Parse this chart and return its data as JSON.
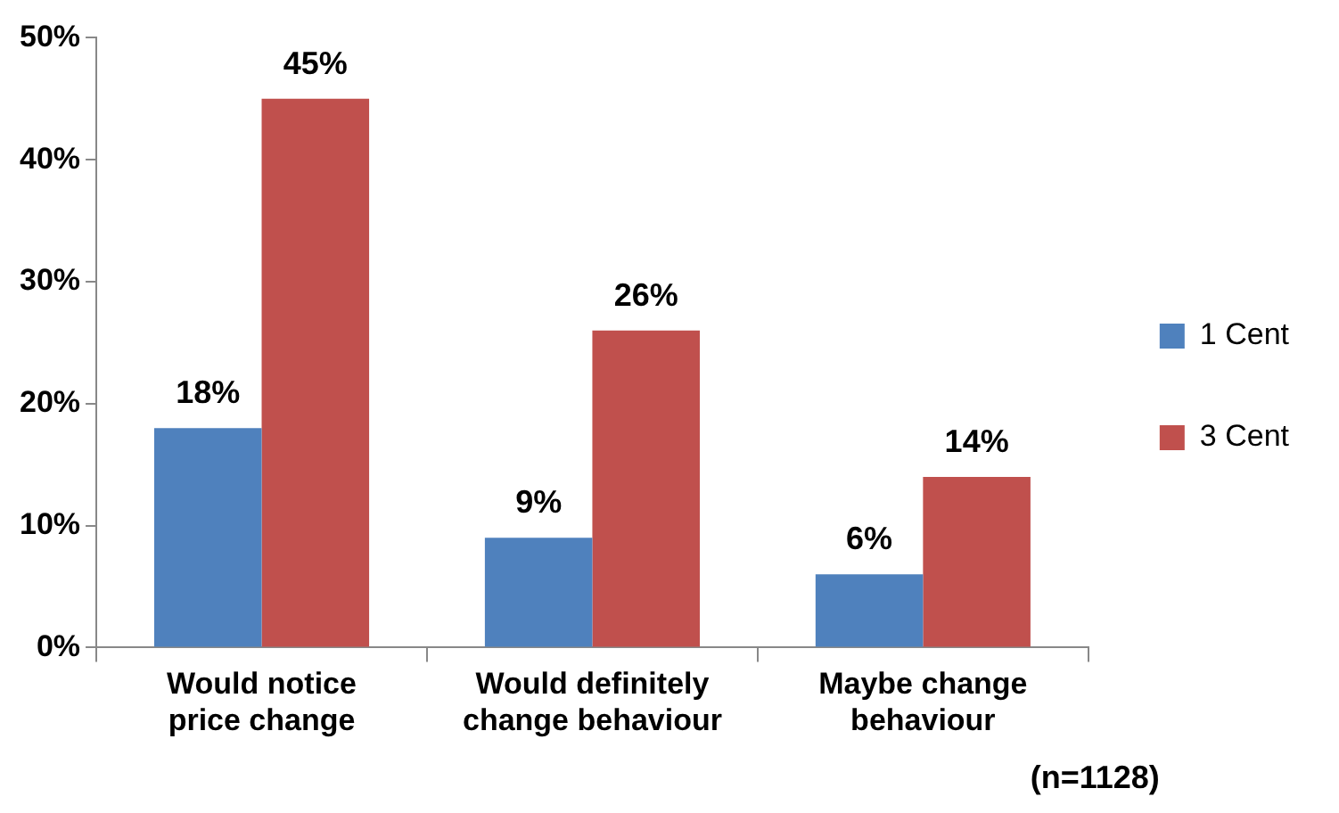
{
  "chart_data": {
    "type": "bar",
    "categories": [
      "Would notice price change",
      "Would definitely change behaviour",
      "Maybe change behaviour"
    ],
    "series": [
      {
        "name": "1 Cent",
        "color": "#4f81bd",
        "values": [
          18,
          9,
          6
        ],
        "value_labels": [
          "18%",
          "9%",
          "6%"
        ]
      },
      {
        "name": "3 Cent",
        "color": "#c0504d",
        "values": [
          45,
          26,
          14
        ],
        "value_labels": [
          "45%",
          "26%",
          "14%"
        ]
      }
    ],
    "ylim": [
      0,
      50
    ],
    "yticks": [
      {
        "value": 0,
        "label": "0%"
      },
      {
        "value": 10,
        "label": "10%"
      },
      {
        "value": 20,
        "label": "20%"
      },
      {
        "value": 30,
        "label": "30%"
      },
      {
        "value": 40,
        "label": "40%"
      },
      {
        "value": 50,
        "label": "50%"
      }
    ],
    "grid": false,
    "legend": "right",
    "annotations": [
      "(n=1128)"
    ]
  }
}
